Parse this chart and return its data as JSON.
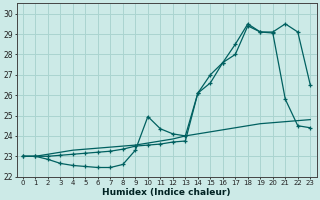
{
  "xlabel": "Humidex (Indice chaleur)",
  "bg_color": "#cceae7",
  "grid_color": "#aad4d0",
  "line_color": "#006060",
  "xlim": [
    -0.5,
    23.5
  ],
  "ylim": [
    22.0,
    30.5
  ],
  "yticks": [
    22,
    23,
    24,
    25,
    26,
    27,
    28,
    29,
    30
  ],
  "xticks": [
    0,
    1,
    2,
    3,
    4,
    5,
    6,
    7,
    8,
    9,
    10,
    11,
    12,
    13,
    14,
    15,
    16,
    17,
    18,
    19,
    20,
    21,
    22,
    23
  ],
  "line1_x": [
    0,
    1,
    2,
    3,
    4,
    5,
    6,
    7,
    8,
    9,
    10,
    11,
    12,
    13,
    14,
    15,
    16,
    17,
    18,
    19,
    20,
    21,
    22,
    23
  ],
  "line1_y": [
    23.0,
    23.0,
    23.1,
    23.2,
    23.3,
    23.35,
    23.4,
    23.45,
    23.5,
    23.55,
    23.65,
    23.75,
    23.85,
    24.0,
    24.1,
    24.2,
    24.3,
    24.4,
    24.5,
    24.6,
    24.65,
    24.7,
    24.75,
    24.8
  ],
  "line2_x": [
    0,
    1,
    2,
    3,
    4,
    5,
    6,
    7,
    8,
    9,
    10,
    11,
    12,
    13,
    14,
    15,
    16,
    17,
    18,
    19,
    20,
    21,
    22,
    23
  ],
  "line2_y": [
    23.0,
    23.0,
    22.85,
    22.65,
    22.55,
    22.5,
    22.45,
    22.45,
    22.6,
    23.3,
    24.95,
    24.35,
    24.1,
    24.0,
    26.1,
    26.6,
    27.6,
    28.5,
    29.5,
    29.1,
    29.05,
    25.8,
    24.5,
    24.4
  ],
  "line3_x": [
    0,
    1,
    2,
    3,
    4,
    5,
    6,
    7,
    8,
    9,
    10,
    11,
    12,
    13,
    14,
    15,
    16,
    17,
    18,
    19,
    20,
    21,
    22,
    23
  ],
  "line3_y": [
    23.0,
    23.0,
    23.0,
    23.05,
    23.1,
    23.15,
    23.2,
    23.25,
    23.35,
    23.5,
    23.55,
    23.6,
    23.7,
    23.75,
    26.1,
    27.0,
    27.6,
    28.0,
    29.4,
    29.1,
    29.1,
    29.5,
    29.1,
    26.5
  ]
}
